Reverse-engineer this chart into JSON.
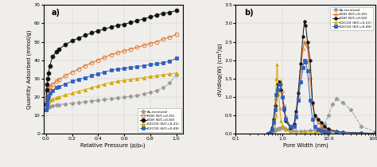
{
  "panel_a": {
    "title": "a)",
    "xlabel": "Relative Pressure (p/p₀)",
    "ylabel": "Quantity Adsorbed (mmol/g)",
    "xlim": [
      -0.02,
      1.05
    ],
    "ylim": [
      0,
      70
    ],
    "yticks": [
      0,
      10,
      20,
      30,
      40,
      50,
      60,
      70
    ],
    "xticks": [
      0.0,
      0.2,
      0.4,
      0.6,
      0.8,
      1.0
    ],
    "series": [
      {
        "label": "As-received",
        "color": "#999999",
        "linestyle": "--",
        "marker": "D",
        "markersize": 2.5,
        "markerfacecolor": "#999999",
        "x": [
          0.0,
          0.005,
          0.01,
          0.015,
          0.02,
          0.03,
          0.05,
          0.08,
          0.1,
          0.15,
          0.2,
          0.25,
          0.3,
          0.35,
          0.4,
          0.45,
          0.5,
          0.55,
          0.6,
          0.65,
          0.7,
          0.75,
          0.8,
          0.85,
          0.9,
          0.95,
          1.0
        ],
        "y": [
          13.0,
          13.5,
          14.0,
          14.2,
          14.5,
          14.8,
          15.2,
          15.5,
          15.8,
          16.2,
          16.6,
          17.0,
          17.4,
          17.8,
          18.2,
          18.6,
          19.0,
          19.4,
          19.8,
          20.3,
          20.8,
          21.5,
          22.5,
          23.5,
          25.0,
          27.5,
          32.0
        ]
      },
      {
        "label": "KOH (K/C=0.25)",
        "color": "#e07020",
        "linestyle": "-",
        "marker": "o",
        "markersize": 3.5,
        "markerfacecolor": "none",
        "x": [
          0.0,
          0.005,
          0.01,
          0.015,
          0.02,
          0.03,
          0.05,
          0.08,
          0.1,
          0.15,
          0.2,
          0.25,
          0.3,
          0.35,
          0.4,
          0.45,
          0.5,
          0.55,
          0.6,
          0.65,
          0.7,
          0.75,
          0.8,
          0.85,
          0.9,
          0.95,
          1.0
        ],
        "y": [
          16.0,
          20.0,
          22.5,
          23.5,
          24.5,
          25.5,
          27.0,
          28.5,
          29.5,
          31.5,
          33.5,
          35.0,
          37.0,
          38.5,
          40.0,
          41.5,
          43.0,
          44.0,
          45.0,
          46.0,
          47.0,
          48.0,
          49.0,
          50.0,
          51.5,
          52.5,
          54.0
        ]
      },
      {
        "label": "KOH (K/C=0.50)",
        "color": "#111111",
        "linestyle": "-",
        "marker": "o",
        "markersize": 3.5,
        "markerfacecolor": "#111111",
        "x": [
          0.0,
          0.005,
          0.01,
          0.015,
          0.02,
          0.03,
          0.05,
          0.08,
          0.1,
          0.15,
          0.2,
          0.25,
          0.3,
          0.35,
          0.4,
          0.45,
          0.5,
          0.55,
          0.6,
          0.65,
          0.7,
          0.75,
          0.8,
          0.85,
          0.9,
          0.95,
          1.0
        ],
        "y": [
          16.0,
          24.0,
          27.0,
          30.0,
          33.0,
          37.0,
          42.0,
          44.5,
          46.0,
          48.5,
          50.5,
          52.0,
          53.5,
          54.8,
          56.0,
          57.0,
          58.0,
          59.0,
          59.5,
          60.5,
          61.5,
          62.5,
          63.5,
          64.5,
          65.5,
          66.0,
          67.0
        ]
      },
      {
        "label": "K2CO3 (K/C=0.21)",
        "color": "#d4a800",
        "linestyle": "-",
        "marker": "^",
        "markersize": 3.0,
        "markerfacecolor": "#d4a800",
        "x": [
          0.0,
          0.005,
          0.01,
          0.015,
          0.02,
          0.03,
          0.05,
          0.08,
          0.1,
          0.15,
          0.2,
          0.25,
          0.3,
          0.35,
          0.4,
          0.45,
          0.5,
          0.55,
          0.6,
          0.65,
          0.7,
          0.75,
          0.8,
          0.85,
          0.9,
          0.95,
          1.0
        ],
        "y": [
          13.0,
          15.5,
          16.5,
          17.0,
          17.5,
          18.0,
          18.8,
          19.5,
          20.0,
          21.0,
          22.0,
          23.0,
          24.0,
          25.0,
          26.0,
          27.0,
          27.8,
          28.5,
          29.0,
          29.5,
          30.0,
          30.5,
          31.0,
          31.5,
          32.0,
          32.5,
          33.0
        ]
      },
      {
        "label": "K2CO3 (K/C=0.49)",
        "color": "#3060c0",
        "linestyle": "-",
        "marker": "s",
        "markersize": 3.0,
        "markerfacecolor": "#3060c0",
        "x": [
          0.0,
          0.005,
          0.01,
          0.015,
          0.02,
          0.03,
          0.05,
          0.08,
          0.1,
          0.15,
          0.2,
          0.25,
          0.3,
          0.35,
          0.4,
          0.45,
          0.5,
          0.55,
          0.6,
          0.65,
          0.7,
          0.75,
          0.8,
          0.85,
          0.9,
          0.95,
          1.0
        ],
        "y": [
          13.0,
          15.0,
          17.0,
          19.0,
          20.5,
          22.0,
          23.5,
          25.0,
          25.5,
          27.0,
          28.5,
          29.5,
          30.5,
          31.5,
          32.5,
          33.5,
          34.5,
          35.0,
          35.5,
          36.0,
          36.5,
          37.0,
          37.5,
          38.0,
          38.5,
          39.5,
          41.0
        ]
      }
    ]
  },
  "panel_b": {
    "title": "b)",
    "xlabel": "Pore Width (nm)",
    "ylabel": "dV/dlog(W) (cm³/g)",
    "xlim": [
      0.1,
      100.0
    ],
    "ylim": [
      0.0,
      3.5
    ],
    "yticks": [
      0.0,
      0.5,
      1.0,
      1.5,
      2.0,
      2.5,
      3.0,
      3.5
    ],
    "xtick_labels": [
      "0.1",
      "1.0",
      "10.0",
      "100.0"
    ],
    "xtick_vals": [
      0.1,
      1.0,
      10.0,
      100.0
    ],
    "series": [
      {
        "label": "As-received",
        "color": "#999999",
        "linestyle": "--",
        "marker": "D",
        "markersize": 2.5,
        "markerfacecolor": "#999999",
        "x": [
          0.5,
          0.55,
          0.6,
          0.65,
          0.7,
          0.75,
          0.8,
          0.85,
          0.9,
          1.0,
          1.1,
          1.2,
          1.4,
          1.7,
          2.0,
          2.5,
          3.0,
          4.0,
          5.0,
          6.0,
          7.0,
          8.0,
          10.0,
          12.0,
          15.0,
          20.0,
          30.0,
          50.0,
          100.0
        ],
        "y": [
          0.0,
          0.02,
          0.04,
          0.06,
          0.08,
          0.1,
          0.12,
          0.14,
          0.16,
          0.18,
          0.15,
          0.12,
          0.1,
          0.08,
          0.07,
          0.06,
          0.07,
          0.08,
          0.1,
          0.12,
          0.15,
          0.25,
          0.5,
          0.8,
          0.95,
          0.85,
          0.65,
          0.2,
          0.05
        ]
      },
      {
        "label": "KOH (K/C=0.25)",
        "color": "#e07020",
        "linestyle": "-",
        "marker": "o",
        "markersize": 2.5,
        "markerfacecolor": "none",
        "x": [
          0.5,
          0.55,
          0.6,
          0.65,
          0.7,
          0.75,
          0.8,
          0.85,
          0.9,
          0.95,
          1.0,
          1.1,
          1.2,
          1.5,
          1.8,
          2.0,
          2.2,
          2.5,
          2.8,
          3.0,
          3.2,
          3.5,
          4.0,
          4.5,
          5.0,
          6.0,
          7.0,
          8.0,
          10.0,
          15.0,
          20.0,
          50.0,
          100.0
        ],
        "y": [
          0.0,
          0.03,
          0.08,
          0.2,
          0.45,
          0.75,
          1.05,
          1.35,
          1.42,
          1.35,
          1.15,
          0.75,
          0.45,
          0.2,
          0.25,
          0.55,
          1.0,
          1.7,
          2.3,
          2.5,
          2.45,
          2.35,
          1.5,
          0.8,
          0.45,
          0.3,
          0.2,
          0.15,
          0.1,
          0.05,
          0.03,
          0.01,
          0.01
        ]
      },
      {
        "label": "KOH (K/C=0.50)",
        "color": "#111111",
        "linestyle": "-",
        "marker": "o",
        "markersize": 2.5,
        "markerfacecolor": "#111111",
        "x": [
          0.5,
          0.55,
          0.6,
          0.65,
          0.7,
          0.75,
          0.8,
          0.85,
          0.9,
          0.95,
          1.0,
          1.1,
          1.2,
          1.5,
          1.8,
          2.0,
          2.2,
          2.5,
          2.8,
          3.0,
          3.2,
          3.5,
          4.0,
          4.5,
          5.0,
          6.0,
          7.0,
          8.0,
          10.0,
          15.0,
          20.0,
          50.0,
          100.0
        ],
        "y": [
          0.0,
          0.05,
          0.15,
          0.4,
          0.75,
          1.05,
          1.35,
          1.4,
          1.35,
          1.2,
          1.0,
          0.65,
          0.35,
          0.15,
          0.25,
          0.6,
          1.1,
          1.9,
          2.65,
          3.05,
          2.95,
          2.5,
          2.0,
          0.85,
          0.5,
          0.4,
          0.3,
          0.2,
          0.12,
          0.06,
          0.04,
          0.02,
          0.01
        ]
      },
      {
        "label": "K2CO3 (K/C=0.21)",
        "color": "#d4a800",
        "linestyle": "-",
        "marker": "^",
        "markersize": 2.5,
        "markerfacecolor": "#d4a800",
        "x": [
          0.5,
          0.55,
          0.6,
          0.65,
          0.7,
          0.72,
          0.75,
          0.78,
          0.82,
          0.88,
          0.95,
          1.0,
          1.1,
          1.2,
          1.5,
          2.0,
          3.0,
          5.0,
          7.0,
          10.0,
          20.0,
          50.0,
          100.0
        ],
        "y": [
          0.0,
          0.02,
          0.05,
          0.15,
          0.55,
          0.95,
          1.5,
          1.88,
          1.35,
          0.7,
          0.35,
          0.22,
          0.15,
          0.1,
          0.07,
          0.05,
          0.04,
          0.04,
          0.03,
          0.03,
          0.02,
          0.01,
          0.01
        ]
      },
      {
        "label": "K2CO3 (K/C=0.49)",
        "color": "#3060c0",
        "linestyle": "-",
        "marker": "s",
        "markersize": 2.5,
        "markerfacecolor": "#3060c0",
        "x": [
          0.5,
          0.55,
          0.6,
          0.65,
          0.7,
          0.75,
          0.8,
          0.85,
          0.9,
          1.0,
          1.1,
          1.2,
          1.5,
          1.8,
          2.0,
          2.2,
          2.5,
          2.8,
          3.0,
          3.2,
          3.5,
          4.0,
          4.5,
          5.0,
          6.0,
          7.0,
          8.0,
          10.0,
          15.0,
          20.0,
          50.0,
          100.0
        ],
        "y": [
          0.0,
          0.03,
          0.1,
          0.3,
          0.65,
          1.05,
          1.2,
          1.35,
          1.35,
          1.0,
          0.7,
          0.4,
          0.2,
          0.2,
          0.45,
          0.9,
          1.4,
          1.8,
          2.0,
          1.95,
          1.7,
          0.9,
          0.4,
          0.2,
          0.1,
          0.08,
          0.06,
          0.05,
          0.04,
          0.03,
          0.01,
          0.01
        ]
      }
    ]
  },
  "legend_a": {
    "labels": [
      "As-received",
      "KOH (K/C=0.25)",
      "KOH (K/C=0.50)",
      "K2CO3 (K/C=0.21)",
      "K2CO3 (K/C=0.49)"
    ]
  },
  "legend_b": {
    "labels": [
      "As-received",
      "KOH (K/C=0.25)",
      "KOH (K/C=0.50)",
      "K2CO3 (K/C=0.21)",
      "K2CO3 (K/C=0.49)"
    ]
  },
  "bg_color": "#f0eeeb"
}
